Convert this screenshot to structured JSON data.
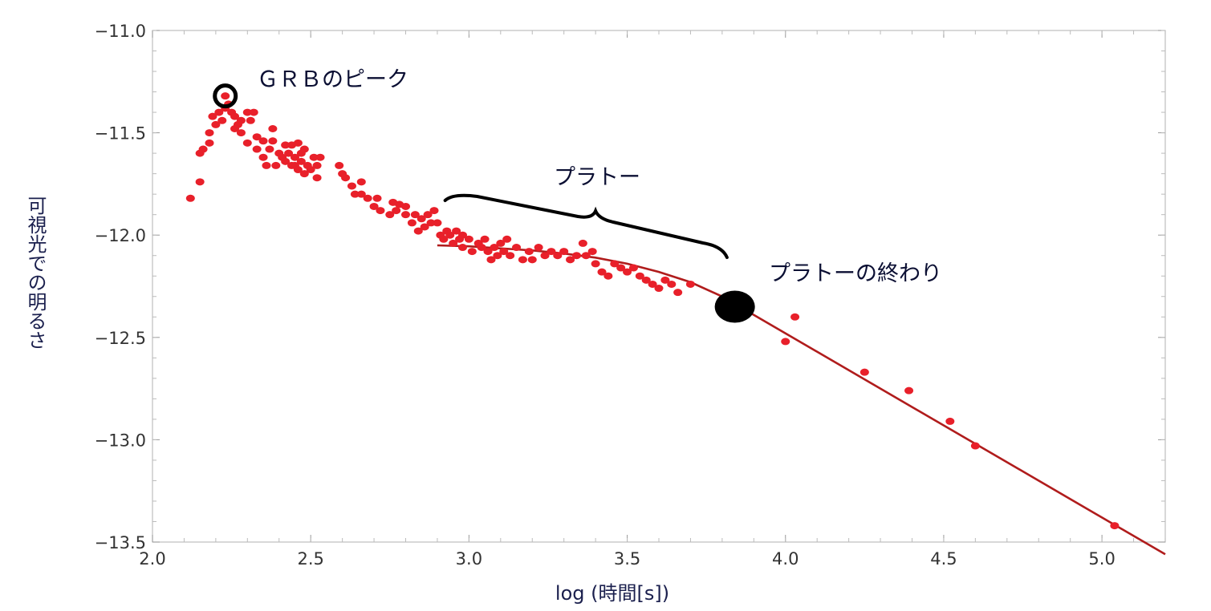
{
  "chart_data": {
    "type": "scatter",
    "xlabel": "log (時間[s])",
    "ylabel": "可視光での明るさ",
    "xlim": [
      2.0,
      5.2
    ],
    "ylim": [
      -13.5,
      -11.0
    ],
    "x_ticks": [
      "2.0",
      "2.5",
      "3.0",
      "3.5",
      "4.0",
      "4.5",
      "5.0"
    ],
    "y_ticks": [
      "−11.0",
      "−11.5",
      "−12.0",
      "−12.5",
      "−13.0",
      "−13.5"
    ],
    "grid": false,
    "colors": {
      "points": "#e8202a",
      "fit": "#b01c1c",
      "bracket": "#000000",
      "text": "#0b0f33"
    },
    "series": [
      {
        "type": "scatter",
        "points": [
          [
            2.12,
            -11.82
          ],
          [
            2.15,
            -11.6
          ],
          [
            2.15,
            -11.74
          ],
          [
            2.16,
            -11.58
          ],
          [
            2.18,
            -11.5
          ],
          [
            2.18,
            -11.55
          ],
          [
            2.19,
            -11.42
          ],
          [
            2.2,
            -11.46
          ],
          [
            2.21,
            -11.4
          ],
          [
            2.22,
            -11.44
          ],
          [
            2.23,
            -11.38
          ],
          [
            2.24,
            -11.36
          ],
          [
            2.23,
            -11.32
          ],
          [
            2.25,
            -11.4
          ],
          [
            2.26,
            -11.42
          ],
          [
            2.26,
            -11.48
          ],
          [
            2.27,
            -11.46
          ],
          [
            2.28,
            -11.44
          ],
          [
            2.28,
            -11.5
          ],
          [
            2.3,
            -11.55
          ],
          [
            2.3,
            -11.4
          ],
          [
            2.31,
            -11.44
          ],
          [
            2.32,
            -11.4
          ],
          [
            2.33,
            -11.52
          ],
          [
            2.33,
            -11.58
          ],
          [
            2.35,
            -11.54
          ],
          [
            2.35,
            -11.62
          ],
          [
            2.36,
            -11.66
          ],
          [
            2.37,
            -11.58
          ],
          [
            2.38,
            -11.48
          ],
          [
            2.38,
            -11.54
          ],
          [
            2.39,
            -11.66
          ],
          [
            2.4,
            -11.6
          ],
          [
            2.41,
            -11.62
          ],
          [
            2.42,
            -11.56
          ],
          [
            2.42,
            -11.64
          ],
          [
            2.43,
            -11.6
          ],
          [
            2.44,
            -11.66
          ],
          [
            2.44,
            -11.56
          ],
          [
            2.45,
            -11.62
          ],
          [
            2.45,
            -11.66
          ],
          [
            2.46,
            -11.55
          ],
          [
            2.46,
            -11.68
          ],
          [
            2.47,
            -11.6
          ],
          [
            2.47,
            -11.64
          ],
          [
            2.48,
            -11.7
          ],
          [
            2.48,
            -11.58
          ],
          [
            2.49,
            -11.66
          ],
          [
            2.5,
            -11.68
          ],
          [
            2.51,
            -11.62
          ],
          [
            2.52,
            -11.66
          ],
          [
            2.52,
            -11.72
          ],
          [
            2.53,
            -11.62
          ],
          [
            2.59,
            -11.66
          ],
          [
            2.6,
            -11.7
          ],
          [
            2.61,
            -11.72
          ],
          [
            2.63,
            -11.76
          ],
          [
            2.64,
            -11.8
          ],
          [
            2.66,
            -11.74
          ],
          [
            2.66,
            -11.8
          ],
          [
            2.68,
            -11.82
          ],
          [
            2.7,
            -11.86
          ],
          [
            2.71,
            -11.82
          ],
          [
            2.72,
            -11.88
          ],
          [
            2.75,
            -11.9
          ],
          [
            2.76,
            -11.84
          ],
          [
            2.77,
            -11.88
          ],
          [
            2.78,
            -11.85
          ],
          [
            2.8,
            -11.9
          ],
          [
            2.8,
            -11.86
          ],
          [
            2.82,
            -11.94
          ],
          [
            2.83,
            -11.9
          ],
          [
            2.84,
            -11.98
          ],
          [
            2.85,
            -11.92
          ],
          [
            2.86,
            -11.96
          ],
          [
            2.87,
            -11.9
          ],
          [
            2.88,
            -11.94
          ],
          [
            2.89,
            -11.88
          ],
          [
            2.9,
            -11.94
          ],
          [
            2.91,
            -12.0
          ],
          [
            2.92,
            -12.02
          ],
          [
            2.93,
            -11.98
          ],
          [
            2.94,
            -12.0
          ],
          [
            2.95,
            -12.04
          ],
          [
            2.96,
            -11.98
          ],
          [
            2.97,
            -12.02
          ],
          [
            2.98,
            -12.0
          ],
          [
            2.98,
            -12.06
          ],
          [
            3.0,
            -12.02
          ],
          [
            3.01,
            -12.08
          ],
          [
            3.03,
            -12.04
          ],
          [
            3.04,
            -12.06
          ],
          [
            3.05,
            -12.02
          ],
          [
            3.06,
            -12.08
          ],
          [
            3.07,
            -12.12
          ],
          [
            3.08,
            -12.06
          ],
          [
            3.09,
            -12.1
          ],
          [
            3.1,
            -12.04
          ],
          [
            3.11,
            -12.08
          ],
          [
            3.12,
            -12.02
          ],
          [
            3.13,
            -12.1
          ],
          [
            3.15,
            -12.06
          ],
          [
            3.17,
            -12.12
          ],
          [
            3.19,
            -12.08
          ],
          [
            3.2,
            -12.12
          ],
          [
            3.22,
            -12.06
          ],
          [
            3.24,
            -12.1
          ],
          [
            3.26,
            -12.08
          ],
          [
            3.28,
            -12.1
          ],
          [
            3.3,
            -12.08
          ],
          [
            3.32,
            -12.12
          ],
          [
            3.34,
            -12.1
          ],
          [
            3.36,
            -12.04
          ],
          [
            3.37,
            -12.1
          ],
          [
            3.39,
            -12.08
          ],
          [
            3.4,
            -12.14
          ],
          [
            3.42,
            -12.18
          ],
          [
            3.44,
            -12.2
          ],
          [
            3.46,
            -12.14
          ],
          [
            3.48,
            -12.16
          ],
          [
            3.5,
            -12.18
          ],
          [
            3.52,
            -12.16
          ],
          [
            3.54,
            -12.2
          ],
          [
            3.56,
            -12.22
          ],
          [
            3.58,
            -12.24
          ],
          [
            3.6,
            -12.26
          ],
          [
            3.62,
            -12.22
          ],
          [
            3.64,
            -12.24
          ],
          [
            3.66,
            -12.28
          ],
          [
            3.7,
            -12.24
          ],
          [
            4.0,
            -12.52
          ],
          [
            4.03,
            -12.4
          ],
          [
            4.25,
            -12.67
          ],
          [
            4.39,
            -12.76
          ],
          [
            4.52,
            -12.91
          ],
          [
            4.6,
            -13.03
          ],
          [
            5.04,
            -13.42
          ]
        ]
      },
      {
        "type": "line",
        "points": [
          [
            2.9,
            -12.05
          ],
          [
            3.0,
            -12.055
          ],
          [
            3.1,
            -12.065
          ],
          [
            3.2,
            -12.075
          ],
          [
            3.3,
            -12.09
          ],
          [
            3.4,
            -12.11
          ],
          [
            3.5,
            -12.14
          ],
          [
            3.6,
            -12.18
          ],
          [
            3.7,
            -12.23
          ],
          [
            3.8,
            -12.3
          ],
          [
            3.9,
            -12.39
          ],
          [
            4.0,
            -12.48
          ],
          [
            4.2,
            -12.66
          ],
          [
            4.4,
            -12.84
          ],
          [
            4.6,
            -13.02
          ],
          [
            4.8,
            -13.2
          ],
          [
            5.0,
            -13.38
          ],
          [
            5.2,
            -13.56
          ]
        ]
      }
    ],
    "annotations": {
      "peak_label": "ＧＲＢのピーク",
      "plateau_label": "プラトー",
      "plateau_end_label": "プラトーの終わり",
      "peak_point": [
        2.23,
        -11.32
      ],
      "plateau_range": [
        2.95,
        3.8
      ],
      "plateau_end_point": [
        3.84,
        -12.35
      ]
    }
  }
}
